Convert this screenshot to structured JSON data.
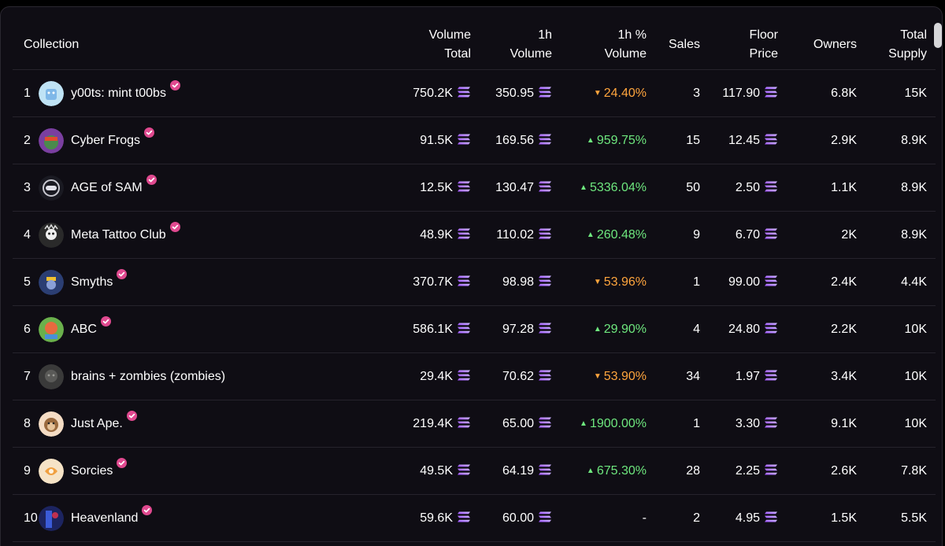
{
  "table": {
    "headers": {
      "collection": "Collection",
      "volume_total": [
        "Volume",
        "Total"
      ],
      "volume_1h": [
        "1h",
        "Volume"
      ],
      "pct_1h": [
        "1h %",
        "Volume"
      ],
      "sales": "Sales",
      "floor": [
        "Floor",
        "Price"
      ],
      "owners": "Owners",
      "supply": [
        "Total",
        "Supply"
      ]
    },
    "rows": [
      {
        "rank": "1",
        "name": "y00ts: mint t00bs",
        "verified": true,
        "avatar": "y00ts-avatar",
        "vol_total": "750.2K",
        "vol_1h": "350.95",
        "pct": "24.40%",
        "trend": "down",
        "sales": "3",
        "floor": "117.90",
        "owners": "6.8K",
        "supply": "15K"
      },
      {
        "rank": "2",
        "name": "Cyber Frogs",
        "verified": true,
        "avatar": "cyber-frogs-avatar",
        "vol_total": "91.5K",
        "vol_1h": "169.56",
        "pct": "959.75%",
        "trend": "up",
        "sales": "15",
        "floor": "12.45",
        "owners": "2.9K",
        "supply": "8.9K"
      },
      {
        "rank": "3",
        "name": "AGE of SAM",
        "verified": true,
        "avatar": "age-of-sam-avatar",
        "vol_total": "12.5K",
        "vol_1h": "130.47",
        "pct": "5336.04%",
        "trend": "up",
        "sales": "50",
        "floor": "2.50",
        "owners": "1.1K",
        "supply": "8.9K"
      },
      {
        "rank": "4",
        "name": "Meta Tattoo Club",
        "verified": true,
        "avatar": "meta-tattoo-club-avatar",
        "vol_total": "48.9K",
        "vol_1h": "110.02",
        "pct": "260.48%",
        "trend": "up",
        "sales": "9",
        "floor": "6.70",
        "owners": "2K",
        "supply": "8.9K"
      },
      {
        "rank": "5",
        "name": "Smyths",
        "verified": true,
        "avatar": "smyths-avatar",
        "vol_total": "370.7K",
        "vol_1h": "98.98",
        "pct": "53.96%",
        "trend": "down",
        "sales": "1",
        "floor": "99.00",
        "owners": "2.4K",
        "supply": "4.4K"
      },
      {
        "rank": "6",
        "name": "ABC",
        "verified": true,
        "avatar": "abc-avatar",
        "vol_total": "586.1K",
        "vol_1h": "97.28",
        "pct": "29.90%",
        "trend": "up",
        "sales": "4",
        "floor": "24.80",
        "owners": "2.2K",
        "supply": "10K"
      },
      {
        "rank": "7",
        "name": "brains + zombies (zombies)",
        "verified": false,
        "avatar": "brains-zombies-avatar",
        "vol_total": "29.4K",
        "vol_1h": "70.62",
        "pct": "53.90%",
        "trend": "down",
        "sales": "34",
        "floor": "1.97",
        "owners": "3.4K",
        "supply": "10K"
      },
      {
        "rank": "8",
        "name": "Just Ape.",
        "verified": true,
        "avatar": "just-ape-avatar",
        "vol_total": "219.4K",
        "vol_1h": "65.00",
        "pct": "1900.00%",
        "trend": "up",
        "sales": "1",
        "floor": "3.30",
        "owners": "9.1K",
        "supply": "10K"
      },
      {
        "rank": "9",
        "name": "Sorcies",
        "verified": true,
        "avatar": "sorcies-avatar",
        "vol_total": "49.5K",
        "vol_1h": "64.19",
        "pct": "675.30%",
        "trend": "up",
        "sales": "28",
        "floor": "2.25",
        "owners": "2.6K",
        "supply": "7.8K"
      },
      {
        "rank": "10",
        "name": "Heavenland",
        "verified": true,
        "avatar": "heavenland-avatar",
        "vol_total": "59.6K",
        "vol_1h": "60.00",
        "pct": "-",
        "trend": "none",
        "sales": "2",
        "floor": "4.95",
        "owners": "1.5K",
        "supply": "5.5K"
      }
    ]
  },
  "colors": {
    "up": "#6ee77e",
    "down": "#ffa53d",
    "verified": "#e0498f",
    "background": "#0f0d14"
  },
  "icons": {
    "currency": "solana-icon",
    "verified": "verified-badge-icon",
    "trend_up": "triangle-up-icon",
    "trend_down": "triangle-down-icon"
  }
}
